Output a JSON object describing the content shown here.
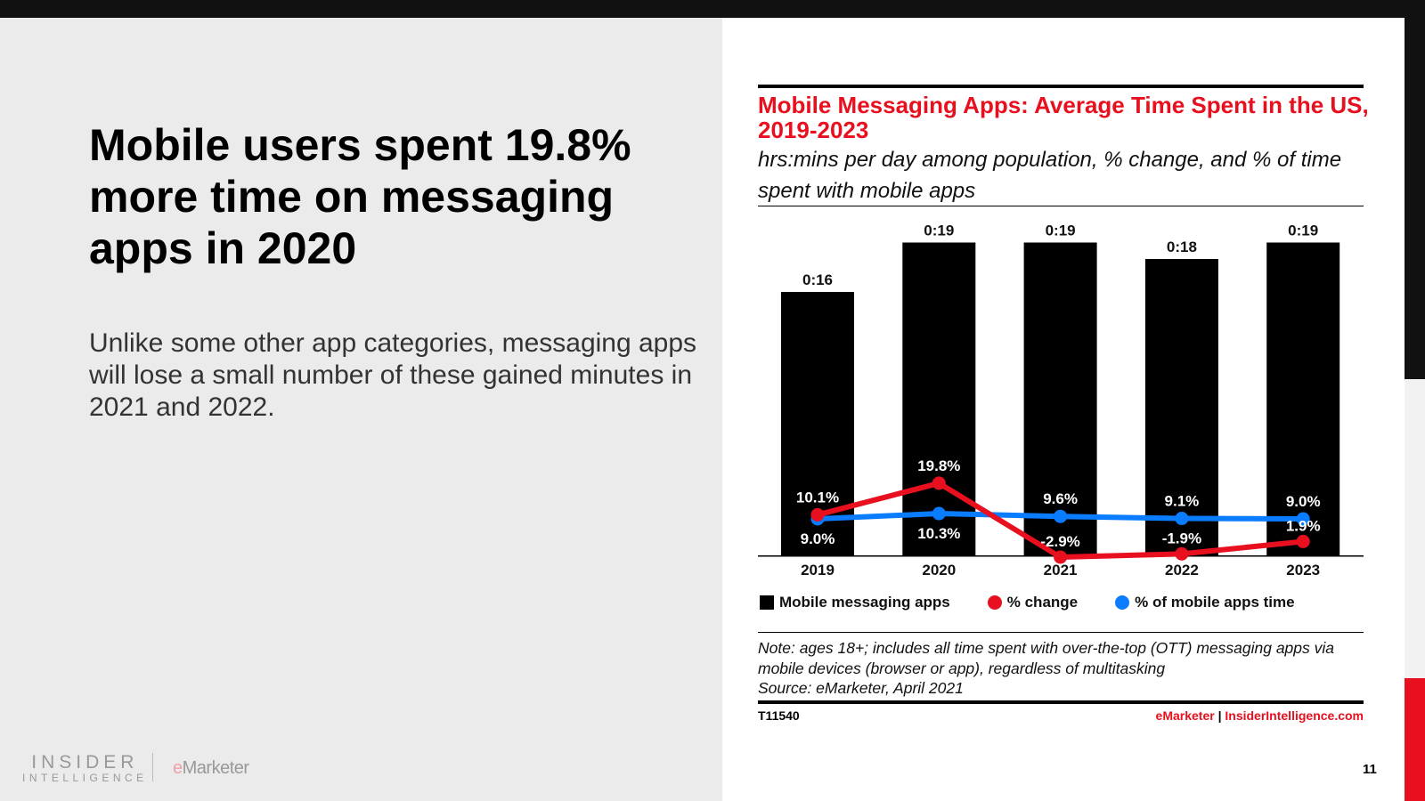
{
  "slide": {
    "headline": "Mobile users spent 19.8% more time on messaging apps in 2020",
    "body": "Unlike some other app categories, messaging apps will lose a small number of these gained minutes in 2021 and 2022.",
    "logo_insider_1": "INSIDER",
    "logo_insider_2": "INTELLIGENCE",
    "logo_emarketer_e": "e",
    "logo_emarketer_rest": "Marketer",
    "page_number": "11"
  },
  "colors": {
    "accent": "#e8101f",
    "bar": "#000000",
    "change": "#e8101f",
    "share": "#0a7cff"
  },
  "chart_data": {
    "type": "bar",
    "title": "Mobile Messaging Apps: Average Time Spent in the US, 2019-2023",
    "subtitle": "hrs:mins per day among population, % change, and % of time spent with mobile apps",
    "categories": [
      "2019",
      "2020",
      "2021",
      "2022",
      "2023"
    ],
    "series": [
      {
        "name": "Mobile messaging apps",
        "type": "bar",
        "values": [
          16,
          19,
          19,
          18,
          19
        ],
        "labels": [
          "0:16",
          "0:19",
          "0:19",
          "0:18",
          "0:19"
        ],
        "unit": "minutes"
      },
      {
        "name": "% change",
        "type": "line",
        "values": [
          10.1,
          19.8,
          -2.9,
          -1.9,
          1.9
        ],
        "labels": [
          "10.1%",
          "19.8%",
          "-2.9%",
          "-1.9%",
          "1.9%"
        ]
      },
      {
        "name": "% of mobile apps time",
        "type": "line",
        "values": [
          9.0,
          10.3,
          9.6,
          9.1,
          9.0
        ],
        "labels": [
          "9.0%",
          "10.3%",
          "9.6%",
          "9.1%",
          "9.0%"
        ]
      }
    ],
    "legend_position": "bottom",
    "note": "Note: ages 18+; includes all time spent with over-the-top (OTT) messaging apps via mobile devices (browser or app), regardless of multitasking",
    "source": "Source: eMarketer, April 2021",
    "chart_id": "T11540",
    "credit_1": "eMarketer",
    "credit_sep": " | ",
    "credit_2": "InsiderIntelligence.com"
  }
}
